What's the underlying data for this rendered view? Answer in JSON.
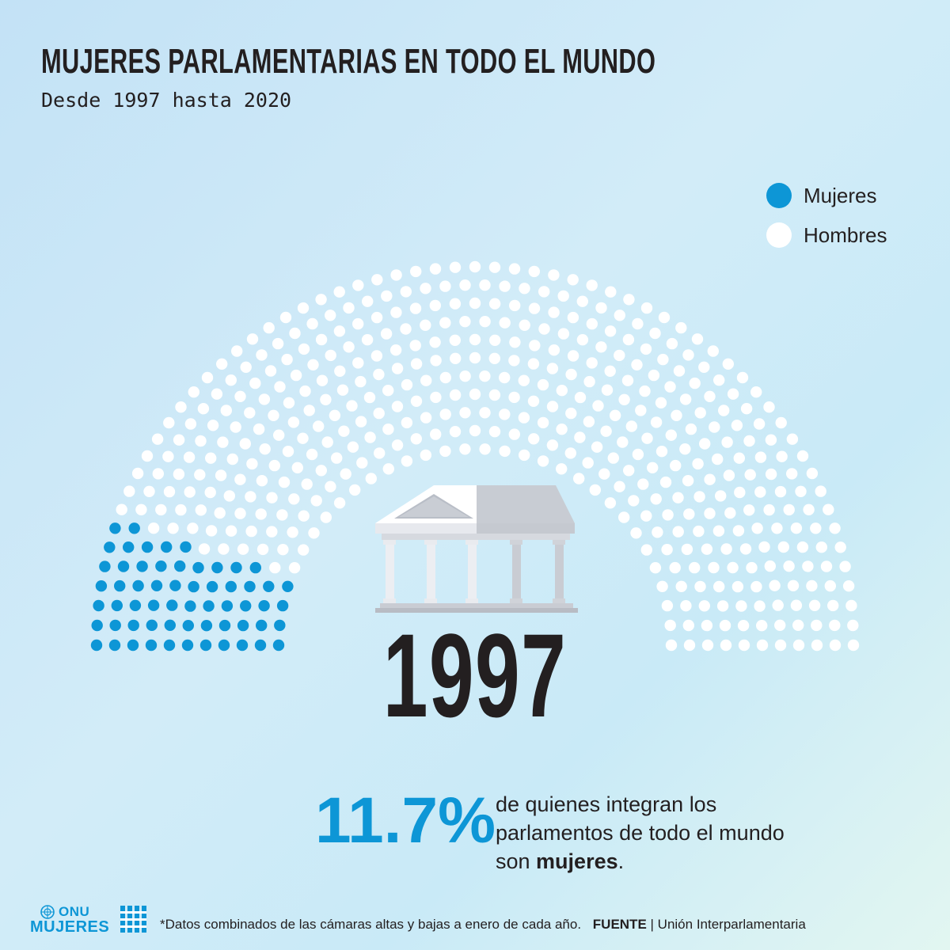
{
  "header": {
    "title": "MUJERES PARLAMENTARIAS EN TODO EL MUNDO",
    "subtitle": "Desde 1997 hasta 2020"
  },
  "legend": [
    {
      "label": "Mujeres",
      "color": "#0d96d6"
    },
    {
      "label": "Hombres",
      "color": "#ffffff"
    }
  ],
  "chart_data": {
    "type": "parliament",
    "year": "1997",
    "series": [
      {
        "name": "Mujeres",
        "value": 11.7,
        "color": "#0d96d6"
      },
      {
        "name": "Hombres",
        "value": 88.3,
        "color": "#ffffff"
      }
    ],
    "unit": "%"
  },
  "stat": {
    "value": "11.7%",
    "line1": "de quienes integran los",
    "line2": "parlamentos de todo el mundo",
    "line3_prefix": "son ",
    "line3_bold": "mujeres",
    "line3_suffix": "."
  },
  "footer": {
    "note": "*Datos combinados de las cámaras altas y bajas a enero de cada año.",
    "source_label": "FUENTE",
    "source_separator": "|",
    "source_value": "Unión Interparlamentaria"
  },
  "logo": {
    "line1": "ONU",
    "line2": "MUJERES"
  },
  "icons": {
    "building": "parliament-building-icon",
    "logo_emblem": "un-emblem-icon"
  }
}
